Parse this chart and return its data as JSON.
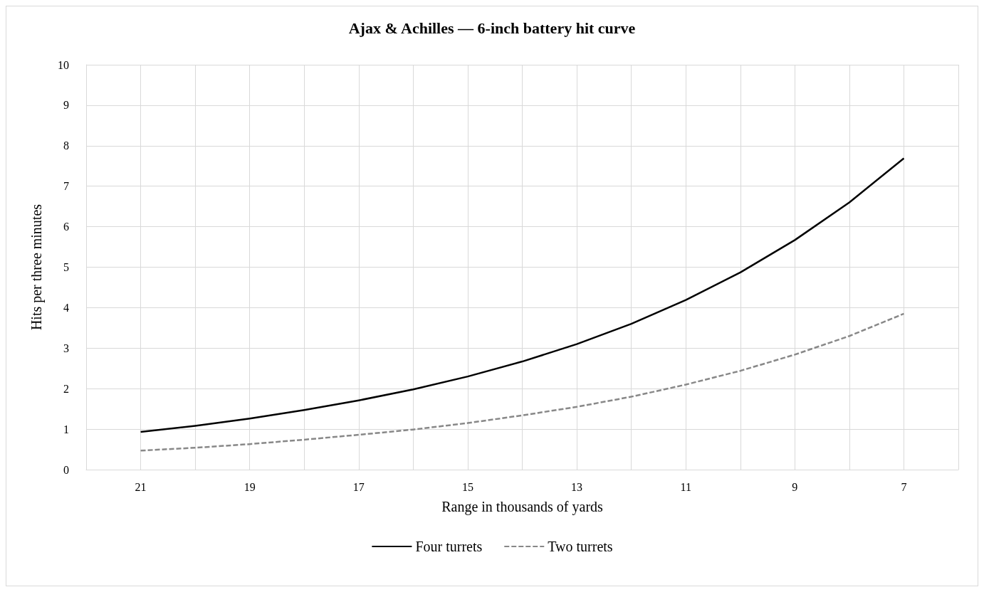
{
  "chart_data": {
    "type": "line",
    "title": "Ajax & Achilles — 6-inch battery hit curve",
    "xlabel": "Range in thousands of yards",
    "ylabel": "Hits per three minutes",
    "x": [
      21,
      20,
      19,
      18,
      17,
      16,
      15,
      14,
      13,
      12,
      11,
      10,
      9,
      8,
      7
    ],
    "series": [
      {
        "name": "Four turrets",
        "color": "#000000",
        "line_style": "solid",
        "values": [
          0.93,
          1.08,
          1.26,
          1.47,
          1.71,
          1.98,
          2.3,
          2.67,
          3.1,
          3.6,
          4.19,
          4.87,
          5.67,
          6.6,
          7.69
        ]
      },
      {
        "name": "Two turrets",
        "color": "#888888",
        "line_style": "dashed",
        "values": [
          0.47,
          0.54,
          0.63,
          0.74,
          0.86,
          0.99,
          1.15,
          1.34,
          1.55,
          1.8,
          2.1,
          2.44,
          2.84,
          3.3,
          3.85
        ]
      }
    ],
    "xlim": [
      22,
      6
    ],
    "xticks": [
      {
        "value": 22,
        "label": null
      },
      21,
      {
        "value": 20,
        "label": null
      },
      19,
      {
        "value": 18,
        "label": null
      },
      17,
      {
        "value": 16,
        "label": null
      },
      15,
      {
        "value": 14,
        "label": null
      },
      13,
      {
        "value": 12,
        "label": null
      },
      11,
      {
        "value": 10,
        "label": null
      },
      9,
      {
        "value": 8,
        "label": null
      },
      7,
      {
        "value": 6,
        "label": null
      }
    ],
    "ylim": [
      0,
      10
    ],
    "yticks": [
      0,
      1,
      2,
      3,
      4,
      5,
      6,
      7,
      8,
      9,
      10
    ],
    "grid": true,
    "legend": "bottom",
    "marker": "none"
  }
}
